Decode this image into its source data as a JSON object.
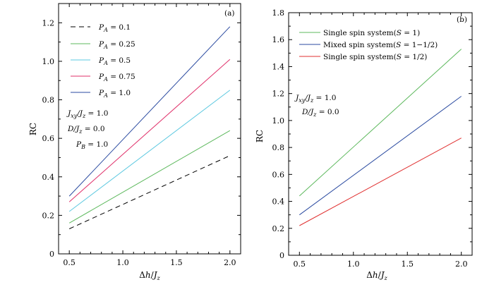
{
  "chart_data": [
    {
      "type": "line",
      "panel_label": "(a)",
      "xlabel": "Δh/J_z",
      "ylabel": "RC",
      "xlim": [
        0.4,
        2.1
      ],
      "ylim": [
        0,
        1.3
      ],
      "xticks": [
        "0.5",
        "1.0",
        "1.5",
        "2.0"
      ],
      "yticks": [
        "0",
        "0.2",
        "0.4",
        "0.6",
        "0.8",
        "1.0",
        "1.2"
      ],
      "legend_position": "top-left",
      "annotations": [
        "J_xy/J_z = 1.0",
        "D/J_z = 0.0",
        "P_B = 1.0"
      ],
      "series": [
        {
          "name": "P_A = 0.1",
          "color": "#000000",
          "dashed": true,
          "x": [
            0.5,
            2.0
          ],
          "values": [
            0.13,
            0.51
          ]
        },
        {
          "name": "P_A = 0.25",
          "color": "#5cb85c",
          "dashed": false,
          "x": [
            0.5,
            2.0
          ],
          "values": [
            0.16,
            0.64
          ]
        },
        {
          "name": "P_A = 0.5",
          "color": "#5bc8e0",
          "dashed": false,
          "x": [
            0.5,
            2.0
          ],
          "values": [
            0.22,
            0.85
          ]
        },
        {
          "name": "P_A = 0.75",
          "color": "#e0306a",
          "dashed": false,
          "x": [
            0.5,
            2.0
          ],
          "values": [
            0.27,
            1.01
          ]
        },
        {
          "name": "P_A = 1.0",
          "color": "#2a4aa0",
          "dashed": false,
          "x": [
            0.5,
            2.0
          ],
          "values": [
            0.3,
            1.18
          ]
        }
      ]
    },
    {
      "type": "line",
      "panel_label": "(b)",
      "xlabel": "Δh/J_z",
      "ylabel": "RC",
      "xlim": [
        0.4,
        2.1
      ],
      "ylim": [
        0,
        1.8
      ],
      "xticks": [
        "0.5",
        "1.0",
        "1.5",
        "2.0"
      ],
      "yticks": [
        "0",
        "0.2",
        "0.4",
        "0.6",
        "0.8",
        "1.0",
        "1.2",
        "1.4",
        "1.6",
        "1.8"
      ],
      "legend_position": "top-left",
      "annotations": [
        "J_xy/J_z = 1.0",
        "D/J_z = 0.0"
      ],
      "series": [
        {
          "name": "Single spin system (S = 1)",
          "color": "#5cb85c",
          "dashed": false,
          "x": [
            0.5,
            2.0
          ],
          "values": [
            0.44,
            1.53
          ]
        },
        {
          "name": "Mixed spin system (S = 1−1/2)",
          "color": "#2a4aa0",
          "dashed": false,
          "x": [
            0.5,
            2.0
          ],
          "values": [
            0.3,
            1.18
          ]
        },
        {
          "name": "Single spin system (S = 1/2)",
          "color": "#e03030",
          "dashed": false,
          "x": [
            0.5,
            2.0
          ],
          "values": [
            0.22,
            0.87
          ]
        }
      ]
    }
  ]
}
